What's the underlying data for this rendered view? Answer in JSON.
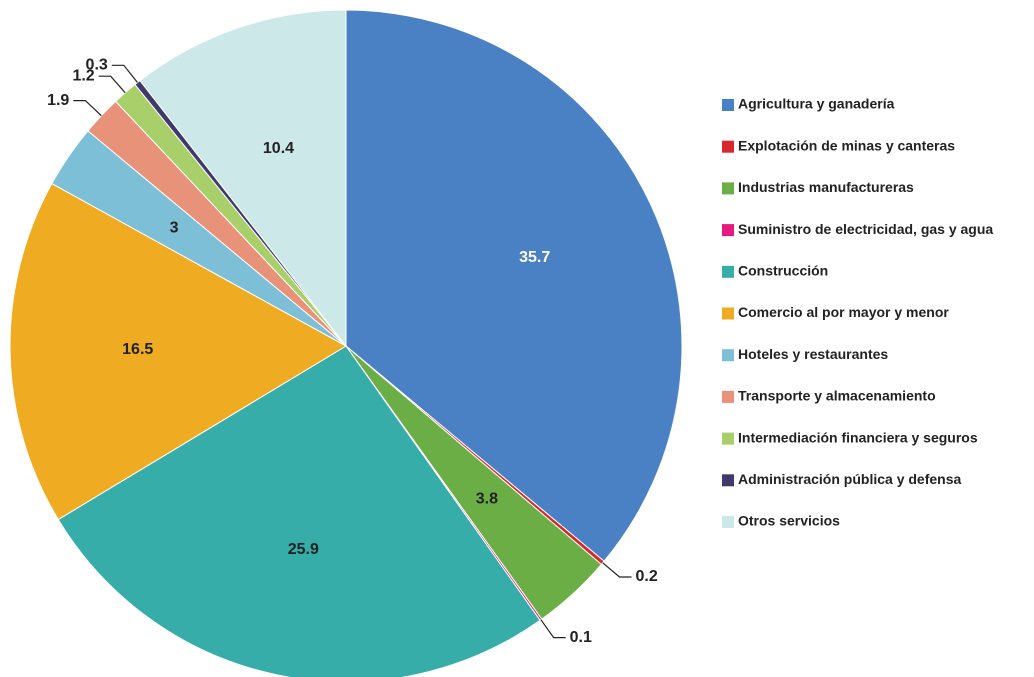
{
  "chart_data": {
    "type": "pie",
    "categories": [
      "Agricultura y ganadería",
      "Explotación de minas y canteras",
      "Industrias manufactureras",
      "Suministro de electricidad, gas y agua",
      "Construcción",
      "Comercio al por mayor y menor",
      "Hoteles y restaurantes",
      "Transporte y almacenamiento",
      "Intermediación financiera y seguros",
      "Administración pública y defensa",
      "Otros servicios"
    ],
    "values": [
      35.7,
      0.2,
      3.8,
      0.1,
      25.9,
      16.5,
      3,
      1.9,
      1.2,
      0.3,
      10.4
    ],
    "colors": [
      "#4a81c4",
      "#d7282f",
      "#6aae45",
      "#e6197f",
      "#36ada9",
      "#efac22",
      "#7cbfd6",
      "#e8927a",
      "#a8cf6a",
      "#3f3a6b",
      "#cce8e8"
    ],
    "legend": "right"
  }
}
